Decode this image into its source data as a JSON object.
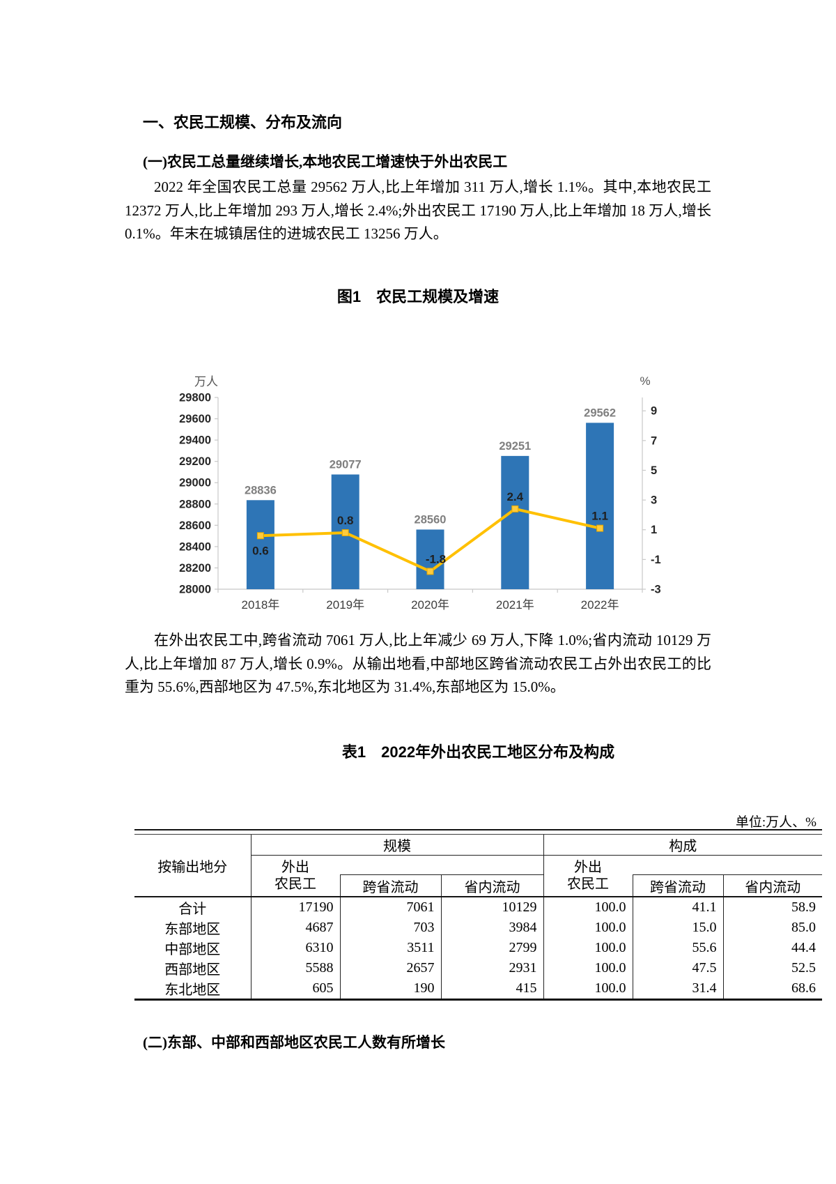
{
  "doc": {
    "section_heading": "一、农民工规模、分布及流向",
    "sub_heading_1": "(一)农民工总量继续增长,本地农民工增速快于外出农民工",
    "paragraph_1": "2022 年全国农民工总量 29562 万人,比上年增加 311 万人,增长 1.1%。其中,本地农民工 12372 万人,比上年增加 293 万人,增长 2.4%;外出农民工 17190 万人,比上年增加 18 万人,增长 0.1%。年末在城镇居住的进城农民工 13256 万人。",
    "paragraph_2": "在外出农民工中,跨省流动 7061 万人,比上年减少 69 万人,下降 1.0%;省内流动 10129 万人,比上年增加 87 万人,增长 0.9%。从输出地看,中部地区跨省流动农民工占外出农民工的比重为 55.6%,西部地区为 47.5%,东北地区为 31.4%,东部地区为 15.0%。",
    "sub_heading_2": "(二)东部、中部和西部地区农民工人数有所增长"
  },
  "chart_data": {
    "type": "bar+line",
    "title": "图1　农民工规模及增速",
    "categories": [
      "2018年",
      "2019年",
      "2020年",
      "2021年",
      "2022年"
    ],
    "series": [
      {
        "name": "bar",
        "type": "bar",
        "axis": "left",
        "values": [
          28836,
          29077,
          28560,
          29251,
          29562
        ],
        "color": "#2E75B6",
        "label_color": "#7f7f7f"
      },
      {
        "name": "line",
        "type": "line",
        "axis": "right",
        "values": [
          0.6,
          0.8,
          -1.8,
          2.4,
          1.1
        ],
        "color": "#FFC000",
        "marker_fill": "#FFCB3D",
        "marker_stroke": "#E3A600",
        "label_color": "#1f1f1f"
      }
    ],
    "left_axis": {
      "label": "万人",
      "min": 28000,
      "max": 29800,
      "tick_step": 200
    },
    "right_axis": {
      "label": "%",
      "min": -3,
      "max": 9.9,
      "ticks": [
        9,
        7,
        5,
        3,
        1,
        -1,
        -3
      ]
    },
    "grid": false,
    "legend": false,
    "line_label_side": [
      "below",
      "above",
      "above",
      "above",
      "above"
    ],
    "line_label_dx": [
      0,
      0,
      8,
      0,
      0
    ]
  },
  "table": {
    "title": "表1　2022年外出农民工地区分布及构成",
    "unit_note": "单位:万人、%",
    "row_header": "按输出地分",
    "group_scale": "规模",
    "group_composition": "构成",
    "columns": {
      "outgoing": [
        "外出",
        "农民工"
      ],
      "inter_province": "跨省流动",
      "intra_province": "省内流动"
    },
    "rows": [
      [
        "合计",
        "17190",
        "7061",
        "10129",
        "100.0",
        "41.1",
        "58.9"
      ],
      [
        "东部地区",
        "4687",
        "703",
        "3984",
        "100.0",
        "15.0",
        "85.0"
      ],
      [
        "中部地区",
        "6310",
        "3511",
        "2799",
        "100.0",
        "55.6",
        "44.4"
      ],
      [
        "西部地区",
        "5588",
        "2657",
        "2931",
        "100.0",
        "47.5",
        "52.5"
      ],
      [
        "东北地区",
        "605",
        "190",
        "415",
        "100.0",
        "31.4",
        "68.6"
      ]
    ]
  }
}
